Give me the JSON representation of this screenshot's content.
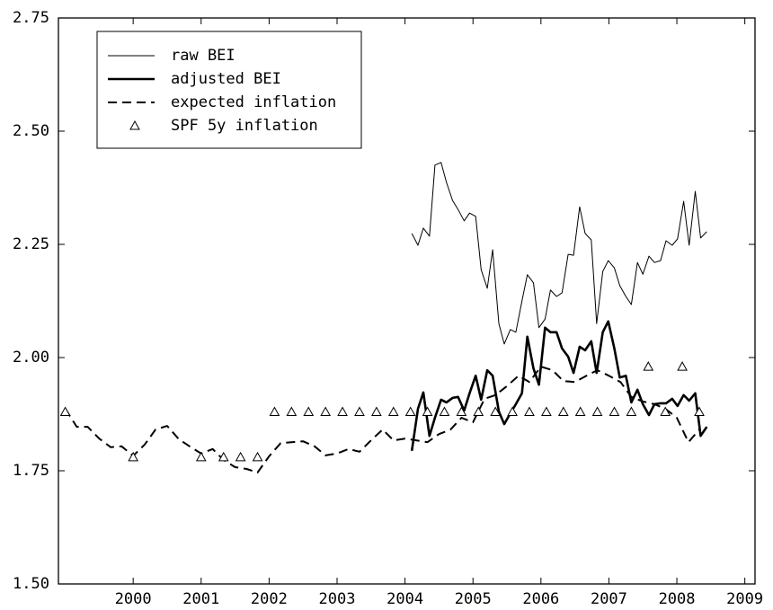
{
  "chart_data": {
    "type": "line",
    "xlim": [
      1998.9,
      2009.15
    ],
    "xticks": [
      2000,
      2001,
      2002,
      2003,
      2004,
      2005,
      2006,
      2007,
      2008,
      2009
    ],
    "ylim": [
      1.5,
      2.75
    ],
    "yticks": [
      2.75,
      {
        "value": 2.5,
        "label": "2.50"
      },
      2.25,
      {
        "value": 2.0,
        "label": "2.00"
      },
      1.75,
      {
        "value": 1.5,
        "label": "1.50"
      }
    ],
    "legend": "upper left",
    "series": [
      {
        "name": "raw BEI",
        "color": "#000000",
        "style": "solid",
        "width": 1,
        "x": [
          2004.1,
          2004.19,
          2004.27,
          2004.36,
          2004.44,
          2004.53,
          2004.61,
          2004.7,
          2004.78,
          2004.87,
          2004.95,
          2005.04,
          2005.12,
          2005.21,
          2005.29,
          2005.38,
          2005.46,
          2005.55,
          2005.63,
          2005.72,
          2005.8,
          2005.89,
          2005.97,
          2006.06,
          2006.14,
          2006.23,
          2006.31,
          2006.4,
          2006.48,
          2006.57,
          2006.65,
          2006.74,
          2006.82,
          2006.91,
          2006.99,
          2007.08,
          2007.16,
          2007.25,
          2007.33,
          2007.42,
          2007.5,
          2007.59,
          2007.67,
          2007.76,
          2007.84,
          2007.93,
          2008.01,
          2008.1,
          2008.18,
          2008.27,
          2008.35,
          2008.44
        ],
        "values": [
          2.274,
          2.248,
          2.286,
          2.268,
          2.425,
          2.431,
          2.387,
          2.347,
          2.327,
          2.302,
          2.319,
          2.312,
          2.194,
          2.153,
          2.238,
          2.075,
          2.03,
          2.062,
          2.056,
          2.125,
          2.183,
          2.165,
          2.066,
          2.085,
          2.149,
          2.135,
          2.143,
          2.228,
          2.226,
          2.333,
          2.274,
          2.26,
          2.075,
          2.19,
          2.214,
          2.198,
          2.159,
          2.135,
          2.117,
          2.21,
          2.184,
          2.224,
          2.21,
          2.214,
          2.258,
          2.248,
          2.262,
          2.345,
          2.248,
          2.367,
          2.264,
          2.278
        ]
      },
      {
        "name": "adjusted BEI",
        "color": "#000000",
        "style": "solid",
        "width": 2.6,
        "x": [
          2004.1,
          2004.19,
          2004.27,
          2004.36,
          2004.44,
          2004.53,
          2004.61,
          2004.7,
          2004.78,
          2004.87,
          2004.95,
          2005.04,
          2005.12,
          2005.21,
          2005.29,
          2005.38,
          2005.46,
          2005.55,
          2005.63,
          2005.72,
          2005.8,
          2005.89,
          2005.97,
          2006.06,
          2006.14,
          2006.23,
          2006.31,
          2006.4,
          2006.48,
          2006.57,
          2006.65,
          2006.74,
          2006.82,
          2006.91,
          2006.99,
          2007.08,
          2007.16,
          2007.25,
          2007.33,
          2007.42,
          2007.5,
          2007.59,
          2007.67,
          2007.76,
          2007.84,
          2007.93,
          2008.01,
          2008.1,
          2008.18,
          2008.27,
          2008.35,
          2008.44
        ],
        "values": [
          1.794,
          1.887,
          1.923,
          1.827,
          1.867,
          1.907,
          1.901,
          1.911,
          1.913,
          1.883,
          1.921,
          1.96,
          1.907,
          1.972,
          1.96,
          1.881,
          1.853,
          1.877,
          1.897,
          1.921,
          2.046,
          1.976,
          1.94,
          2.066,
          2.056,
          2.056,
          2.02,
          2.002,
          1.966,
          2.024,
          2.016,
          2.036,
          1.966,
          2.056,
          2.08,
          2.02,
          1.956,
          1.96,
          1.901,
          1.929,
          1.897,
          1.873,
          1.897,
          1.899,
          1.899,
          1.909,
          1.893,
          1.917,
          1.905,
          1.921,
          1.827,
          1.847
        ]
      },
      {
        "name": "expected inflation",
        "color": "#000000",
        "style": "dashed",
        "width": 2,
        "x": [
          1999.0,
          1999.17,
          1999.33,
          1999.5,
          1999.67,
          1999.83,
          2000.0,
          2000.17,
          2000.33,
          2000.5,
          2000.67,
          2000.83,
          2001.0,
          2001.17,
          2001.33,
          2001.5,
          2001.67,
          2001.83,
          2002.0,
          2002.17,
          2002.33,
          2002.5,
          2002.67,
          2002.83,
          2003.0,
          2003.17,
          2003.33,
          2003.5,
          2003.67,
          2003.83,
          2004.0,
          2004.17,
          2004.33,
          2004.5,
          2004.67,
          2004.83,
          2005.0,
          2005.17,
          2005.33,
          2005.5,
          2005.67,
          2005.83,
          2006.0,
          2006.17,
          2006.33,
          2006.5,
          2006.67,
          2006.83,
          2007.0,
          2007.17,
          2007.33,
          2007.5,
          2007.67,
          2007.83,
          2008.0,
          2008.17,
          2008.33
        ],
        "values": [
          1.887,
          1.847,
          1.847,
          1.821,
          1.802,
          1.804,
          1.783,
          1.808,
          1.841,
          1.849,
          1.82,
          1.804,
          1.788,
          1.798,
          1.774,
          1.758,
          1.754,
          1.746,
          1.782,
          1.811,
          1.813,
          1.815,
          1.804,
          1.784,
          1.788,
          1.798,
          1.792,
          1.817,
          1.841,
          1.817,
          1.821,
          1.817,
          1.813,
          1.831,
          1.841,
          1.867,
          1.857,
          1.909,
          1.917,
          1.937,
          1.96,
          1.946,
          1.98,
          1.972,
          1.948,
          1.946,
          1.96,
          1.972,
          1.96,
          1.946,
          1.913,
          1.903,
          1.897,
          1.887,
          1.867,
          1.813,
          1.841
        ]
      },
      {
        "name": "SPF 5y inflation",
        "color": "#000000",
        "style": "none",
        "marker": "triangle",
        "x": [
          1999.0,
          2000.0,
          2001.0,
          2001.33,
          2001.58,
          2001.83,
          2002.08,
          2002.33,
          2002.58,
          2002.83,
          2003.08,
          2003.33,
          2003.58,
          2003.83,
          2004.08,
          2004.33,
          2004.58,
          2004.83,
          2005.08,
          2005.33,
          2005.58,
          2005.83,
          2006.08,
          2006.33,
          2006.58,
          2006.83,
          2007.08,
          2007.33,
          2007.58,
          2007.83,
          2008.08,
          2008.33
        ],
        "values": [
          1.88,
          1.78,
          1.78,
          1.78,
          1.78,
          1.78,
          1.88,
          1.88,
          1.88,
          1.88,
          1.88,
          1.88,
          1.88,
          1.88,
          1.88,
          1.88,
          1.88,
          1.88,
          1.88,
          1.88,
          1.88,
          1.88,
          1.88,
          1.88,
          1.88,
          1.88,
          1.88,
          1.88,
          1.98,
          1.88,
          1.98,
          1.88
        ]
      }
    ]
  }
}
